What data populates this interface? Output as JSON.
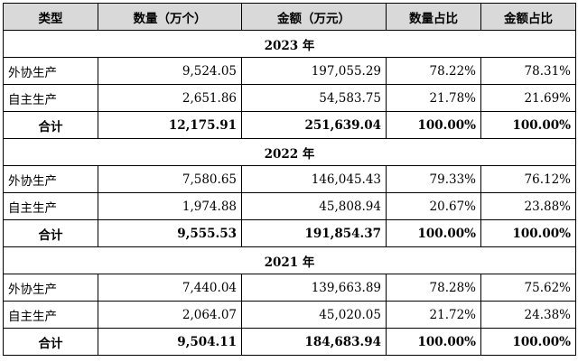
{
  "headers": [
    "类型",
    "数量（万个）",
    "金额（万元）",
    "数量占比",
    "金额占比"
  ],
  "sections": [
    {
      "year": "2023 年",
      "rows": [
        [
          "外协生产",
          "9,524.05",
          "197,055.29",
          "78.22%",
          "78.31%"
        ],
        [
          "自主生产",
          "2,651.86",
          "54,583.75",
          "21.78%",
          "21.69%"
        ]
      ],
      "total": [
        "合计",
        "12,175.91",
        "251,639.04",
        "100.00%",
        "100.00%"
      ]
    },
    {
      "year": "2022 年",
      "rows": [
        [
          "外协生产",
          "7,580.65",
          "146,045.43",
          "79.33%",
          "76.12%"
        ],
        [
          "自主生产",
          "1,974.88",
          "45,808.94",
          "20.67%",
          "23.88%"
        ]
      ],
      "total": [
        "合计",
        "9,555.53",
        "191,854.37",
        "100.00%",
        "100.00%"
      ]
    },
    {
      "year": "2021 年",
      "rows": [
        [
          "外协生产",
          "7,440.04",
          "139,663.89",
          "78.28%",
          "75.62%"
        ],
        [
          "自主生产",
          "2,064.07",
          "45,020.05",
          "21.72%",
          "24.38%"
        ]
      ],
      "total": [
        "合计",
        "9,504.11",
        "184,683.94",
        "100.00%",
        "100.00%"
      ]
    }
  ]
}
